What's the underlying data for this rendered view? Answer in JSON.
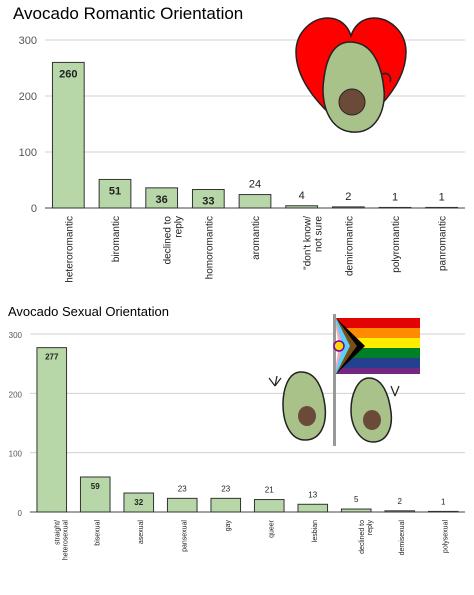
{
  "chart_data": [
    {
      "type": "bar",
      "title": "Avocado Romantic Orientation",
      "categories": [
        "heteroromantic",
        "biromantic",
        "declined to reply",
        "homoromantic",
        "aromantic",
        "\"don't know/ not sure",
        "demiromantic",
        "polyromantic",
        "panromantic"
      ],
      "values": [
        260,
        51,
        36,
        33,
        24,
        4,
        2,
        1,
        1
      ],
      "ylim": [
        0,
        300
      ],
      "yticks": [
        0,
        100,
        200,
        300
      ],
      "grid": true,
      "bar_color": "#b7d7a8",
      "xlabel": "",
      "ylabel": ""
    },
    {
      "type": "bar",
      "title": "Avocado Sexual Orientation",
      "categories": [
        "straight/ heterosexual",
        "bisexual",
        "asexual",
        "pansexual",
        "gay",
        "queer",
        "lesbian",
        "declined to reply",
        "demisexual",
        "polysexual"
      ],
      "values": [
        277,
        59,
        32,
        23,
        23,
        21,
        13,
        5,
        2,
        1
      ],
      "ylim": [
        0,
        300
      ],
      "yticks": [
        0,
        100,
        200,
        300
      ],
      "grid": true,
      "bar_color": "#b7d7a8",
      "xlabel": "",
      "ylabel": ""
    }
  ],
  "illustrations": {
    "top": "heart-avocado-icon",
    "bottom": "pride-flag-avocados-icon"
  }
}
